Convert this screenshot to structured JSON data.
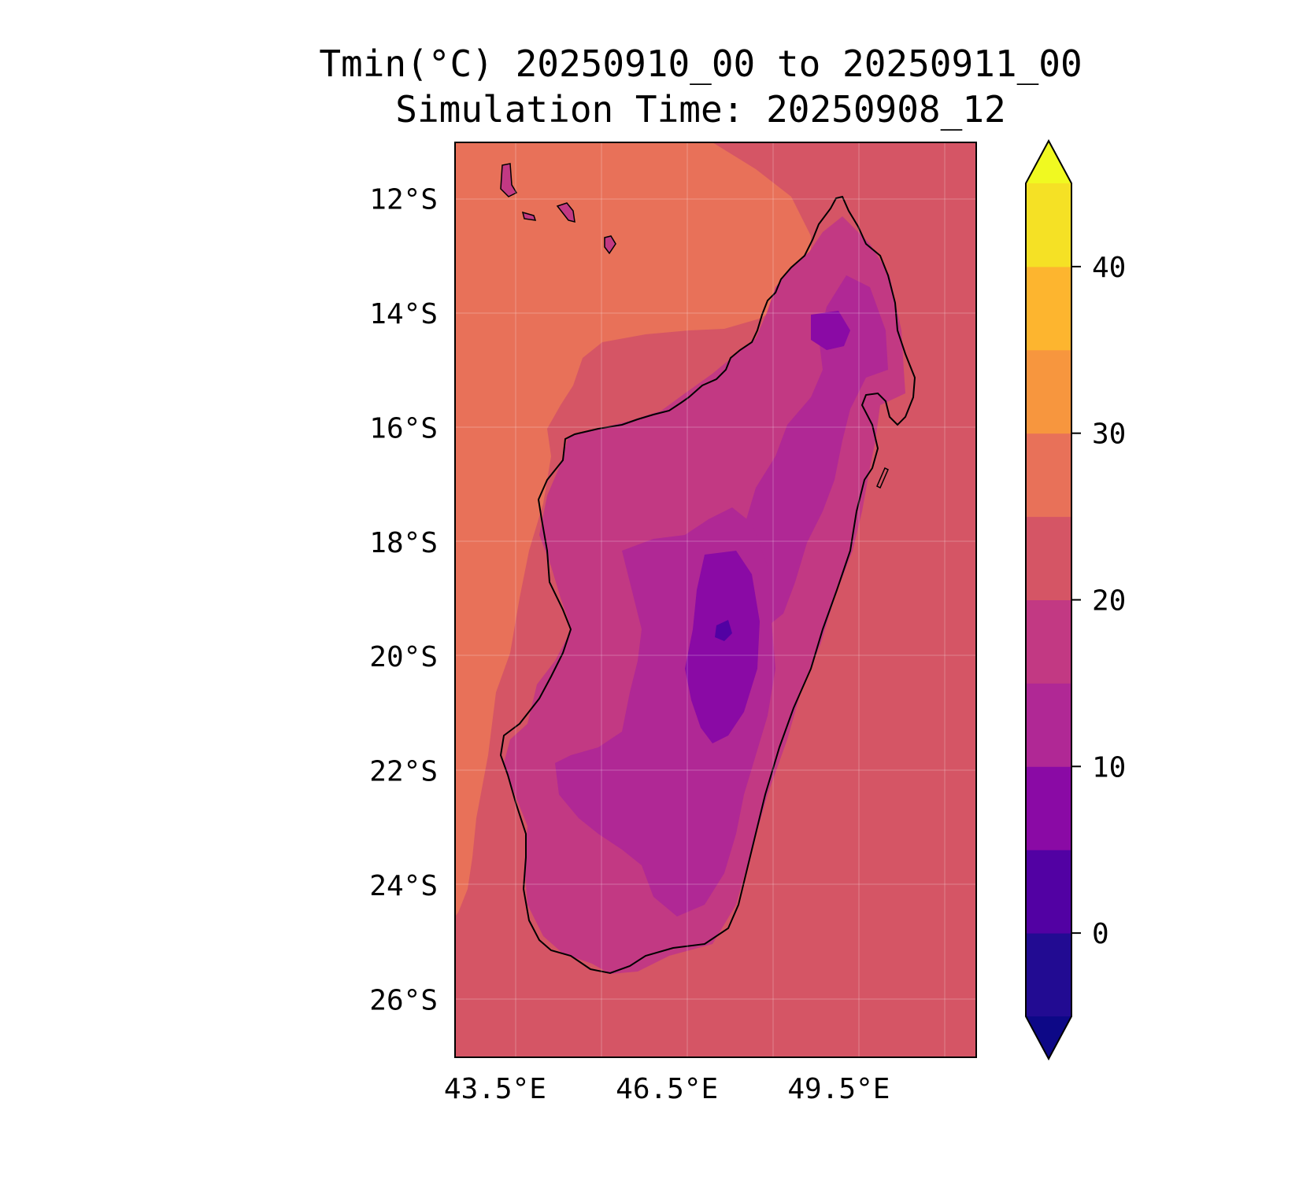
{
  "title": {
    "line1": "Tmin(°C) 20250910_00 to 20250911_00",
    "line2": "Simulation Time: 20250908_12"
  },
  "map": {
    "region": "Madagascar",
    "lon_range": [
      42.8,
      51.9
    ],
    "lat_range": [
      -27.0,
      -11.0
    ],
    "lon_ticks": [
      {
        "value": 43.5,
        "label": "43.5°E"
      },
      {
        "value": 46.5,
        "label": "46.5°E"
      },
      {
        "value": 49.5,
        "label": "49.5°E"
      }
    ],
    "lat_ticks": [
      {
        "value": -12,
        "label": "12°S"
      },
      {
        "value": -14,
        "label": "14°S"
      },
      {
        "value": -16,
        "label": "16°S"
      },
      {
        "value": -18,
        "label": "18°S"
      },
      {
        "value": -20,
        "label": "20°S"
      },
      {
        "value": -22,
        "label": "22°S"
      },
      {
        "value": -24,
        "label": "24°S"
      },
      {
        "value": -26,
        "label": "26°S"
      }
    ],
    "grid": true,
    "coastline_color": "#000000"
  },
  "colorbar": {
    "min": -5,
    "max": 45,
    "extend": "both",
    "levels": [
      -5,
      0,
      5,
      10,
      15,
      20,
      25,
      30,
      35,
      40,
      45
    ],
    "colors": [
      "#220b92",
      "#5201a3",
      "#8a0aa5",
      "#b02895",
      "#c23983",
      "#d55565",
      "#e87159",
      "#f7963e",
      "#fdb52f",
      "#f5e125"
    ],
    "under_color": "#0d0887",
    "over_color": "#f0f921",
    "ticks": [
      {
        "value": 0,
        "label": "0"
      },
      {
        "value": 10,
        "label": "10"
      },
      {
        "value": 20,
        "label": "20"
      },
      {
        "value": 30,
        "label": "30"
      },
      {
        "value": 40,
        "label": "40"
      }
    ]
  }
}
